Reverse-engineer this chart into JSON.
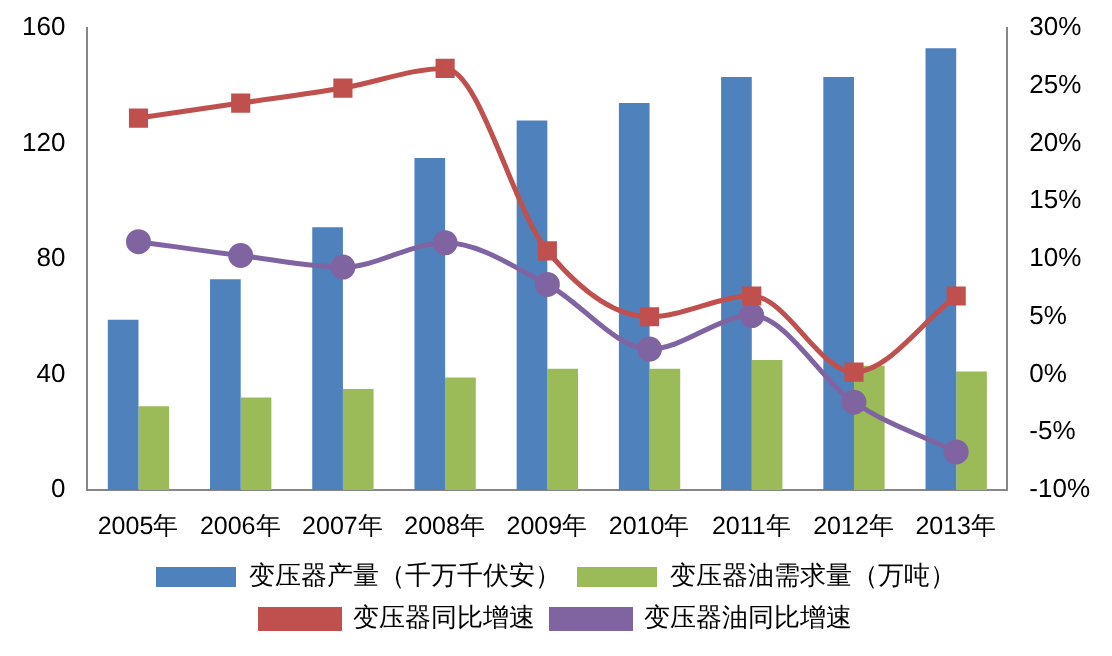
{
  "chart_data": {
    "type": "bar",
    "categories": [
      "2005年",
      "2006年",
      "2007年",
      "2008年",
      "2009年",
      "2010年",
      "2011年",
      "2012年",
      "2013年"
    ],
    "series": [
      {
        "name": "变压器产量（千万千伏安）",
        "color": "#4f81bd",
        "values": [
          59,
          73,
          91,
          115,
          128,
          134,
          143,
          143,
          153
        ]
      },
      {
        "name": "变压器油需求量（万吨）",
        "color": "#9bbb59",
        "values": [
          29,
          32,
          35,
          39,
          42,
          42,
          45,
          43,
          41
        ]
      },
      {
        "name": "变压器同比增速",
        "type": "line",
        "axis": "y2",
        "marker": "square",
        "color": "#c0504d",
        "values": [
          22.2,
          23.5,
          24.8,
          26.5,
          10.7,
          5,
          6.8,
          0.2,
          6.8
        ]
      },
      {
        "name": "变压器油同比增速",
        "type": "line",
        "axis": "y2",
        "marker": "circle",
        "color": "#8064a2",
        "values": [
          11.5,
          10.3,
          9.3,
          11.4,
          7.8,
          2.2,
          5.1,
          -2.4,
          -6.7
        ]
      }
    ],
    "ylim": [
      0,
      160
    ],
    "yticks": [
      0,
      40,
      80,
      120,
      160
    ],
    "y2lim": [
      -10,
      30
    ],
    "y2ticks": [
      {
        "value": -10,
        "label": "-10%"
      },
      {
        "value": -5,
        "label": "-5%"
      },
      {
        "value": 0,
        "label": "0%"
      },
      {
        "value": 5,
        "label": "5%"
      },
      {
        "value": 10,
        "label": "10%"
      },
      {
        "value": 15,
        "label": "15%"
      },
      {
        "value": 20,
        "label": "20%"
      },
      {
        "value": 25,
        "label": "25%"
      },
      {
        "value": 30,
        "label": "30%"
      }
    ],
    "grid": false,
    "legend": "bottom"
  }
}
